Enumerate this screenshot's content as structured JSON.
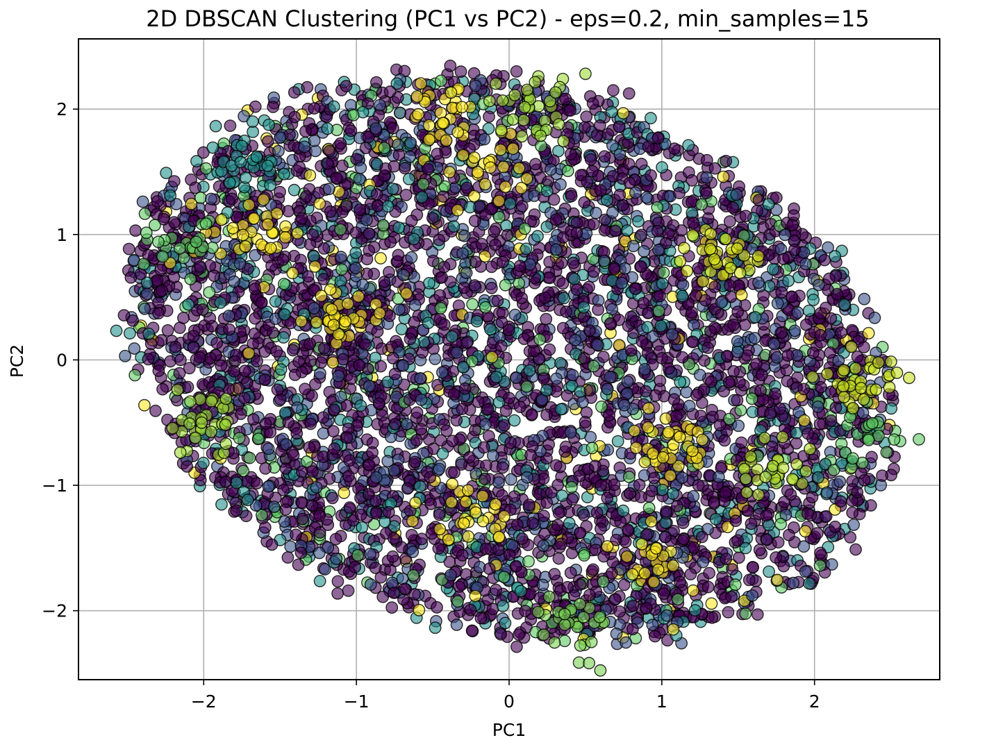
{
  "chart_data": {
    "type": "scatter",
    "title": "2D DBSCAN Clustering (PC1 vs PC2) - eps=0.2, min_samples=15",
    "xlabel": "PC1",
    "ylabel": "PC2",
    "xlim": [
      -2.82,
      2.82
    ],
    "ylim": [
      -2.55,
      2.56
    ],
    "xticks": [
      -2,
      -1,
      0,
      1,
      2
    ],
    "yticks": [
      -2,
      -1,
      0,
      1,
      2
    ],
    "xtick_labels": [
      "−2",
      "−1",
      "0",
      "1",
      "2"
    ],
    "ytick_labels": [
      "−2",
      "−1",
      "0",
      "1",
      "2"
    ],
    "grid": true,
    "legend": "none",
    "colormap": "viridis",
    "point_alpha": 0.6,
    "edge_color": "#000000",
    "dominant_color": "#440154",
    "color_stops": [
      "#440154",
      "#3b528b",
      "#21918c",
      "#5ec962",
      "#fde725"
    ],
    "point_cloud": {
      "description_of_extent": "dense roughly elliptical cloud",
      "x_range": [
        -2.6,
        2.55
      ],
      "y_range": [
        -2.3,
        2.35
      ],
      "approx_point_count": 5000
    },
    "highlight_clusters": [
      {
        "x": 2.35,
        "y": -0.6,
        "color": "#5ec962"
      },
      {
        "x": 2.3,
        "y": -0.15,
        "color": "#c8e020"
      },
      {
        "x": -2.0,
        "y": -0.5,
        "color": "#a0da39"
      },
      {
        "x": -1.7,
        "y": 1.5,
        "color": "#21918c"
      },
      {
        "x": -0.1,
        "y": 1.55,
        "color": "#fde725"
      },
      {
        "x": 1.4,
        "y": 0.85,
        "color": "#d8e219"
      },
      {
        "x": 1.05,
        "y": -0.65,
        "color": "#fde725"
      },
      {
        "x": 0.95,
        "y": -1.6,
        "color": "#fde725"
      },
      {
        "x": -0.25,
        "y": -1.25,
        "color": "#fde725"
      },
      {
        "x": -1.1,
        "y": 0.35,
        "color": "#fde725"
      },
      {
        "x": -1.65,
        "y": 1.0,
        "color": "#fde725"
      },
      {
        "x": 0.45,
        "y": -2.1,
        "color": "#7ad151"
      },
      {
        "x": 0.2,
        "y": 2.0,
        "color": "#a0da39"
      },
      {
        "x": -2.2,
        "y": 0.9,
        "color": "#5ec962"
      },
      {
        "x": 1.75,
        "y": -0.85,
        "color": "#b5de2b"
      },
      {
        "x": -0.4,
        "y": 1.95,
        "color": "#fde725"
      }
    ]
  }
}
